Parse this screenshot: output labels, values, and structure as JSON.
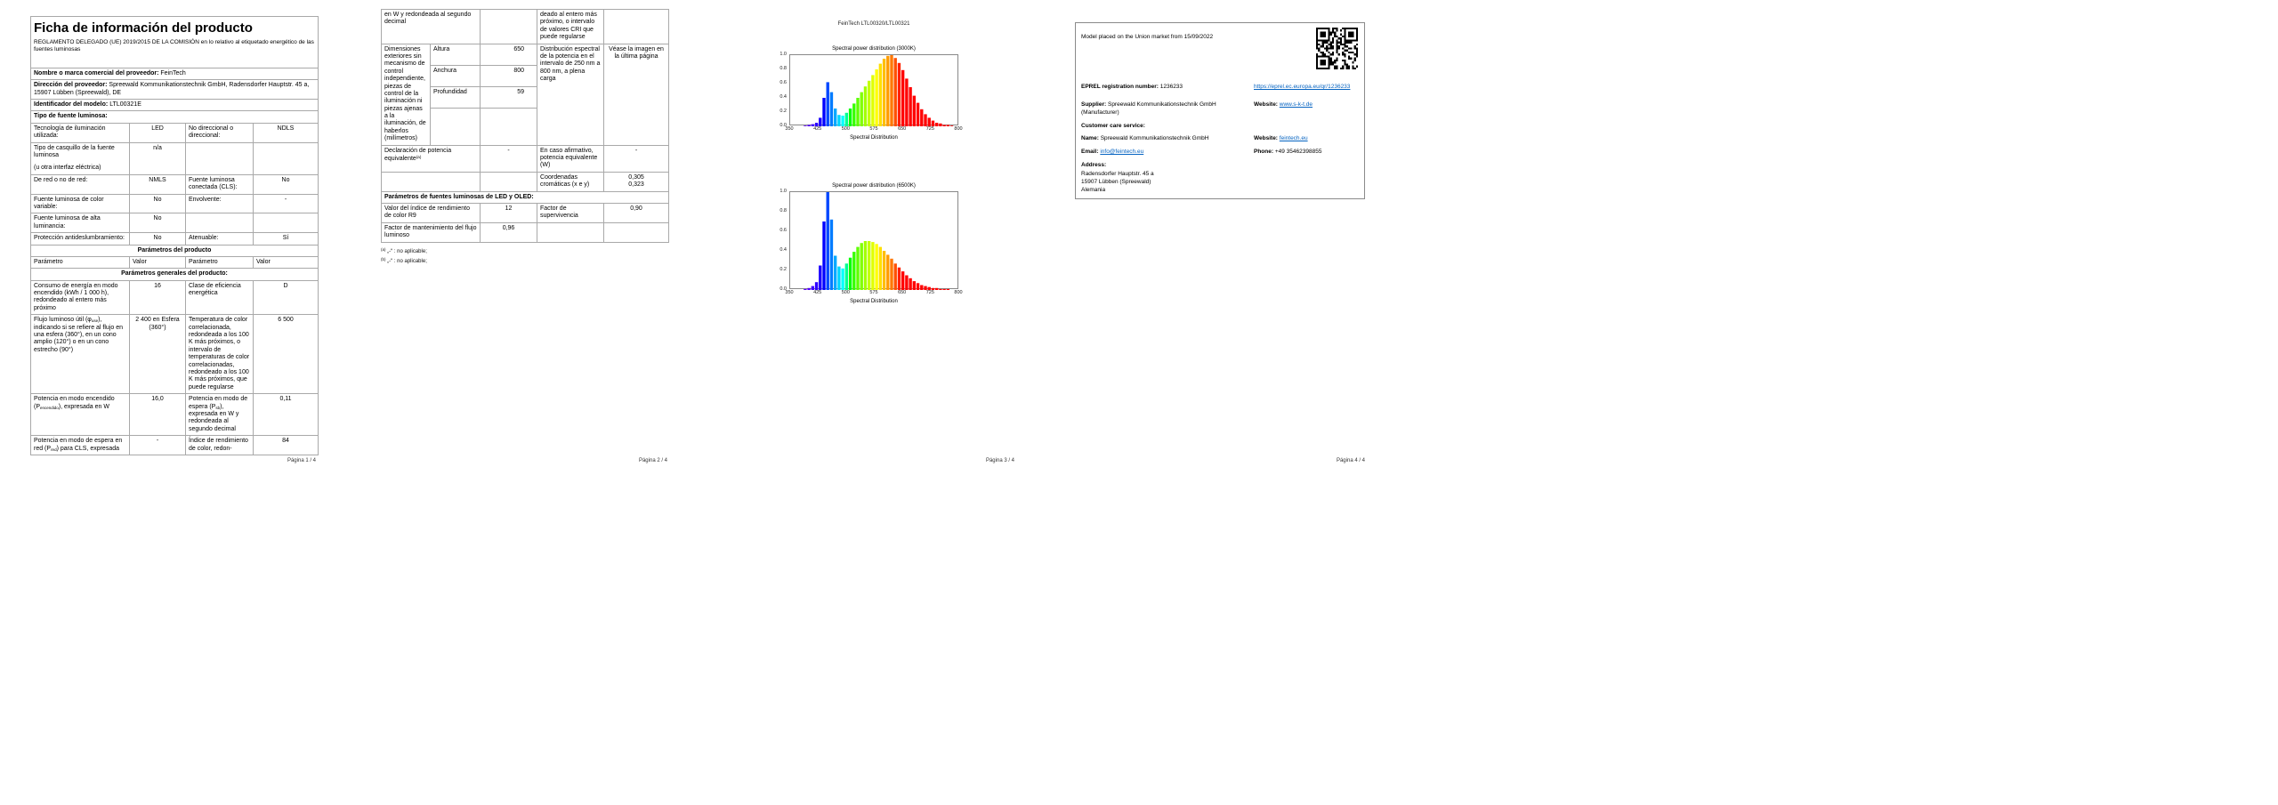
{
  "viewer": {
    "footers": [
      "Página 1 / 4",
      "Página 2 / 4",
      "Página 3 / 4",
      "Página 4 / 4"
    ]
  },
  "page1": {
    "title": "Ficha de información del producto",
    "subtitle": "REGLAMENTO DELEGADO (UE) 2019/2015 DE LA COMISIÓN en lo relativo al etiquetado energético de las fuentes luminosas",
    "supplier_label": "Nombre o marca comercial del proveedor:",
    "supplier_value": "FeinTech",
    "address_label": "Dirección del proveedor:",
    "address_value": "Spreewald Kommunikationstechnik GmbH, Radensdorfer Hauptstr. 45 a, 15907 Lübben (Spreewald), DE",
    "model_label": "Identificador del modelo:",
    "model_value": "LTL00321E",
    "type_header": "Tipo de fuente luminosa:",
    "tech_row": [
      "Tecnología de iluminación utilizada:",
      "LED",
      "No direccional o direccional:",
      "NDLS"
    ],
    "cap_label_1": "Tipo de casquillo de la fuente luminosa",
    "cap_label_2": "(u otra interfaz eléctrica)",
    "cap_value": "n/a",
    "red_row": [
      "De red o no de red:",
      "NMLS",
      "Fuente luminosa conectada (CLS):",
      "No"
    ],
    "color_row": [
      "Fuente luminosa de color variable:",
      "No",
      "Envolvente:",
      "-"
    ],
    "lum_row": [
      "Fuente luminosa de alta luminancia:",
      "No"
    ],
    "glare_row": [
      "Protección antideslumbramiento:",
      "No",
      "Atenuable:",
      "Sí"
    ],
    "params_header": "Parámetros del producto",
    "param_cols": [
      "Parámetro",
      "Valor",
      "Parámetro",
      "Valor"
    ],
    "general_header": "Parámetros generales del producto:",
    "consumo_row": [
      "Consumo de energía en modo encendido (kWh / 1 000 h), redondeado al entero más próximo",
      "16",
      "Clase de eficiencia energética",
      "D"
    ],
    "flujo": {
      "pre": "Flujo luminoso útil (φ",
      "sub": "use",
      "post": "), indicando si se refiere al flujo en una esfera (360°), en un cono amplio (120°) o en un cono estrecho (90°)",
      "value": "2 400 en Esfera (360°)",
      "temp_label": "Temperatura de color correlacionada, redondeada a los 100 K más próximos, o intervalo de temperaturas de color correlacionadas, redondeado a los 100 K más próximos, que puede regularse",
      "temp_value": "6 500"
    },
    "p_on": {
      "pre": "Potencia en modo encendido (P",
      "sub": "encendido",
      "post": "), expresada en W",
      "value": "16,0"
    },
    "p_sb": {
      "pre": "Potencia en modo de espera (P",
      "sub": "sb",
      "post": "), expresada en W y redondeada al segundo decimal",
      "value": "0,11"
    },
    "p_net": {
      "pre": "Potencia en modo de espera en red (P",
      "sub": "red",
      "post": ") para CLS, expresada",
      "value": "-"
    },
    "cri_label": "Índice de rendimiento de color, redon-",
    "cri_value": "84"
  },
  "page2": {
    "cont_left": "en W y redondeada al segundo decimal",
    "cont_right": "deado al entero más próximo, o intervalo de valores CRI que puede regularse",
    "dim_label": "Dimensiones exteriores sin mecanismo de control independiente, piezas de control de la iluminación ni piezas ajenas a la iluminación, de haberlos (milímetros)",
    "dim_rows": [
      [
        "Altura",
        "650"
      ],
      [
        "Anchura",
        "800"
      ],
      [
        "Profundidad",
        "59"
      ]
    ],
    "spectral_label": "Distribución espectral de la potencia en el intervalo de 250 nm a 800 nm, a plena carga",
    "spectral_value": "Véase la imagen en la última página",
    "decl_pre": "Declaración de potencia equivalente",
    "decl_sup": "(a)",
    "decl_value": "-",
    "decl_right_label": "En caso afirmativo, potencia equivalente (W)",
    "decl_right_value": "-",
    "coords_label": "Coordenadas cromáticas (x e y)",
    "coords_x": "0,305",
    "coords_y": "0,323",
    "led_header": "Parámetros de fuentes luminosas de LED y OLED:",
    "r9_row": [
      "Valor del índice de rendimiento de color R9",
      "12",
      "Factor de supervivencia",
      "0,90"
    ],
    "maint_row": [
      "Factor de mantenimiento del flujo luminoso",
      "0,96"
    ],
    "footnotes": [
      {
        "marker": "(a)",
        "text": "„-“ : no aplicable;"
      },
      {
        "marker": "(b)",
        "text": "„-“ : no aplicable;"
      }
    ]
  },
  "page3": {
    "header": "FeinTech LTL00320/LTL00321"
  },
  "chart_data": [
    {
      "type": "bar",
      "title": "Spectral power distribution (3000K)",
      "xlabel": "Spectral Distribution",
      "xlim": [
        350,
        800
      ],
      "ylim": [
        0,
        1.0
      ],
      "x_ticks": [
        350,
        425,
        500,
        575,
        650,
        725,
        800
      ],
      "y_ticks": [
        0.0,
        0.2,
        0.4,
        0.6,
        0.8,
        1.0
      ],
      "x": [
        390,
        400,
        410,
        420,
        430,
        440,
        450,
        460,
        470,
        480,
        490,
        500,
        510,
        520,
        530,
        540,
        550,
        560,
        570,
        580,
        590,
        600,
        610,
        620,
        630,
        640,
        650,
        660,
        670,
        680,
        690,
        700,
        710,
        720,
        730,
        740,
        750,
        760,
        770,
        780
      ],
      "values": [
        0.01,
        0.02,
        0.03,
        0.05,
        0.12,
        0.4,
        0.62,
        0.48,
        0.25,
        0.16,
        0.15,
        0.19,
        0.25,
        0.32,
        0.4,
        0.48,
        0.56,
        0.64,
        0.72,
        0.8,
        0.88,
        0.95,
        0.99,
        1.0,
        0.96,
        0.89,
        0.79,
        0.67,
        0.55,
        0.43,
        0.33,
        0.24,
        0.17,
        0.12,
        0.08,
        0.05,
        0.04,
        0.02,
        0.02,
        0.01
      ]
    },
    {
      "type": "bar",
      "title": "Spectral power distribution (6500K)",
      "xlabel": "Spectral Distribution",
      "xlim": [
        350,
        800
      ],
      "ylim": [
        0,
        1.0
      ],
      "x_ticks": [
        350,
        425,
        500,
        575,
        650,
        725,
        800
      ],
      "y_ticks": [
        0.0,
        0.2,
        0.4,
        0.6,
        0.8,
        1.0
      ],
      "x": [
        390,
        400,
        410,
        420,
        430,
        440,
        450,
        460,
        470,
        480,
        490,
        500,
        510,
        520,
        530,
        540,
        550,
        560,
        570,
        580,
        590,
        600,
        610,
        620,
        630,
        640,
        650,
        660,
        670,
        680,
        690,
        700,
        710,
        720,
        730,
        740,
        750,
        760,
        770,
        780
      ],
      "values": [
        0.01,
        0.02,
        0.04,
        0.08,
        0.25,
        0.7,
        1.0,
        0.72,
        0.35,
        0.24,
        0.22,
        0.27,
        0.33,
        0.39,
        0.44,
        0.48,
        0.5,
        0.5,
        0.49,
        0.47,
        0.44,
        0.4,
        0.36,
        0.32,
        0.27,
        0.23,
        0.19,
        0.15,
        0.12,
        0.09,
        0.07,
        0.05,
        0.04,
        0.03,
        0.02,
        0.02,
        0.01,
        0.01,
        0.01,
        0.0
      ]
    }
  ],
  "page4": {
    "market_line": "Model placed on the Union market from 15/09/2022",
    "eprel_label": "EPREL registration number:",
    "eprel_value": "1236233",
    "eprel_link": "https://eprel.ec.europa.eu/qr/1236233",
    "supplier_label": "Supplier:",
    "supplier_value": "Spreewald Kommunikationstechnik GmbH (Manufacturer)",
    "website_label": "Website:",
    "website1_value": "www.s-k-t.de",
    "care_header": "Customer care service:",
    "name_label": "Name:",
    "name_value": "Spreewald Kommunikationstechnik GmbH",
    "website2_value": "feintech.eu",
    "email_label": "Email:",
    "email_value": "info@feintech.eu",
    "phone_label": "Phone:",
    "phone_value": "+49 35462398855",
    "address_header": "Address:",
    "address_lines": [
      "Radensdorfer Hauptstr. 45 a",
      "15907 Lübben (Spreewald)",
      "Alemania"
    ]
  }
}
